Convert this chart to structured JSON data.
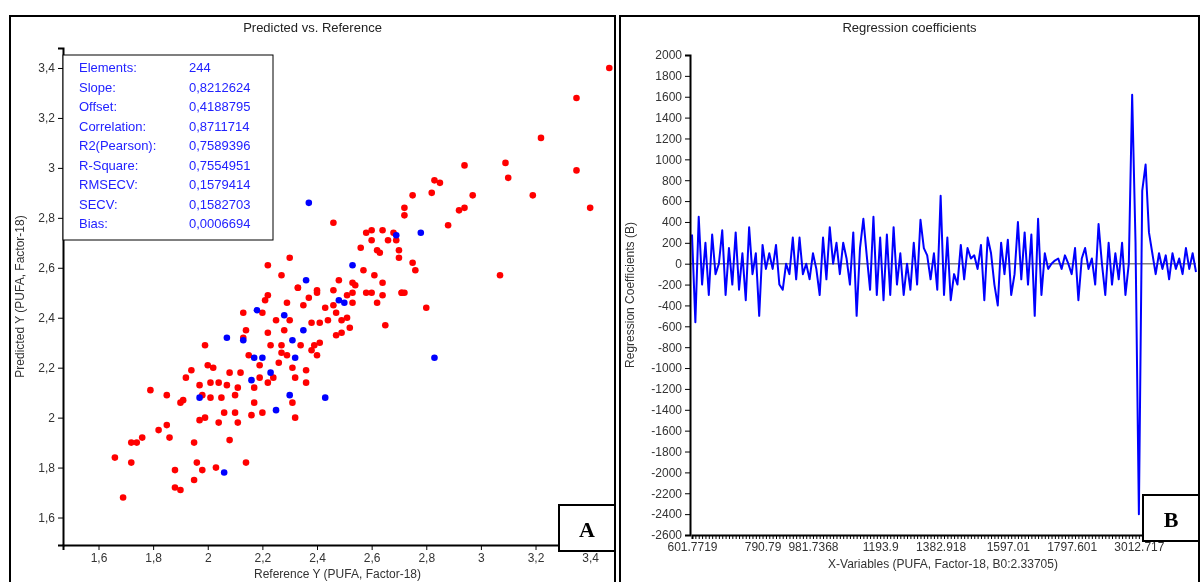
{
  "chart_data": [
    {
      "type": "scatter",
      "title": "Predicted vs. Reference",
      "xlabel": "Reference Y (PUFA, Factor-18)",
      "ylabel": "Predicted Y (PUFA, Factor-18)",
      "marker": "circle",
      "xlim": [
        1.47,
        3.48
      ],
      "ylim": [
        1.49,
        3.48
      ],
      "xticks": [
        {
          "value": 1.6,
          "label": "1,6"
        },
        {
          "value": 1.8,
          "label": "1,8"
        },
        2,
        {
          "value": 2.2,
          "label": "2,2"
        },
        {
          "value": 2.4,
          "label": "2,4"
        },
        {
          "value": 2.6,
          "label": "2,6"
        },
        {
          "value": 2.8,
          "label": "2,8"
        },
        3,
        {
          "value": 3.2,
          "label": "3,2"
        },
        {
          "value": 3.4,
          "label": "3,4"
        }
      ],
      "yticks": [
        {
          "value": 1.6,
          "label": "1,6"
        },
        {
          "value": 1.8,
          "label": "1,8"
        },
        2,
        {
          "value": 2.2,
          "label": "2,2"
        },
        {
          "value": 2.4,
          "label": "2,4"
        },
        {
          "value": 2.6,
          "label": "2,6"
        },
        {
          "value": 2.8,
          "label": "2,8"
        },
        3,
        {
          "value": 3.2,
          "label": "3,2"
        },
        {
          "value": 3.4,
          "label": "3,4"
        }
      ],
      "annotations": [
        "Elements: 244",
        "Slope: 0,8212624",
        "Offset: 0,4188795",
        "Correlation: 0,8711714",
        "R2(Pearson): 0,7589396",
        "R-Square: 0,7554951",
        "RMSECV: 0,1579414",
        "SECV: 0,1582703",
        "Bias: 0,0006694",
        "A"
      ],
      "series": [
        {
          "color": "#ff0000",
          "x": [
            1.66,
            1.69,
            1.72,
            1.72,
            1.74,
            1.76,
            1.79,
            1.82,
            1.85,
            1.85,
            1.86,
            1.88,
            1.88,
            1.9,
            1.9,
            1.91,
            1.92,
            1.94,
            1.95,
            1.95,
            1.96,
            1.97,
            1.97,
            1.98,
            1.98,
            1.99,
            1.99,
            2,
            2.01,
            2.01,
            2.02,
            2.03,
            2.04,
            2.04,
            2.05,
            2.06,
            2.07,
            2.08,
            2.08,
            2.1,
            2.1,
            2.11,
            2.11,
            2.12,
            2.13,
            2.13,
            2.14,
            2.14,
            2.15,
            2.16,
            2.17,
            2.17,
            2.19,
            2.19,
            2.2,
            2.2,
            2.21,
            2.22,
            2.22,
            2.22,
            2.23,
            2.24,
            2.25,
            2.26,
            2.27,
            2.27,
            2.28,
            2.29,
            2.29,
            2.3,
            2.31,
            2.31,
            2.32,
            2.32,
            2.33,
            2.34,
            2.35,
            2.36,
            2.36,
            2.37,
            2.38,
            2.38,
            2.39,
            2.4,
            2.4,
            2.41,
            2.41,
            2.43,
            2.44,
            2.46,
            2.46,
            2.47,
            2.47,
            2.49,
            2.49,
            2.51,
            2.52,
            2.53,
            2.53,
            2.54,
            2.58,
            2.6,
            2.62,
            2.64,
            2.65,
            2.71,
            2.72,
            2.8,
            2.46,
            2.22,
            2.27,
            2.3,
            2.33,
            2.4,
            2.48,
            2.53,
            2.51,
            2.56,
            2.57,
            2.58,
            2.6,
            2.6,
            2.61,
            2.62,
            2.63,
            2.64,
            2.64,
            2.66,
            2.68,
            2.69,
            2.7,
            2.7,
            2.71,
            2.72,
            2.72,
            2.75,
            2.75,
            2.76,
            2.82,
            2.83,
            2.85,
            2.88,
            2.92,
            2.94,
            2.94,
            2.97,
            3.07,
            3.09,
            3.1,
            3.19,
            3.22,
            3.35,
            3.35,
            3.4,
            3.47
          ],
          "values": [
            1.84,
            1.68,
            1.82,
            1.9,
            1.9,
            1.92,
            2.11,
            1.95,
            1.97,
            2.09,
            1.92,
            1.79,
            1.72,
            1.71,
            2.06,
            2.07,
            2.16,
            2.19,
            1.9,
            1.75,
            1.82,
            2.13,
            1.99,
            1.79,
            2.09,
            2.29,
            2,
            2.21,
            2.14,
            2.08,
            2.2,
            1.8,
            1.98,
            2.14,
            2.08,
            2.02,
            2.13,
            1.91,
            2.18,
            2.02,
            2.09,
            1.98,
            2.12,
            2.18,
            2.42,
            2.32,
            1.82,
            2.35,
            2.25,
            2.01,
            2.06,
            2.12,
            2.16,
            2.21,
            2.42,
            2.02,
            2.47,
            2.49,
            2.34,
            2.14,
            2.29,
            2.16,
            2.39,
            2.22,
            2.29,
            2.26,
            2.35,
            2.25,
            2.46,
            2.39,
            2.2,
            2.06,
            2,
            2.16,
            2.52,
            2.29,
            2.45,
            2.14,
            2.19,
            2.48,
            2.38,
            2.27,
            2.29,
            2.51,
            2.25,
            2.38,
            2.3,
            2.44,
            2.39,
            2.51,
            2.45,
            2.33,
            2.42,
            2.39,
            2.34,
            2.4,
            2.36,
            2.46,
            2.5,
            2.53,
            2.5,
            2.5,
            2.46,
            2.49,
            2.37,
            2.5,
            2.5,
            2.44,
            2.78,
            2.61,
            2.57,
            2.64,
            2.52,
            2.5,
            2.55,
            2.54,
            2.49,
            2.68,
            2.59,
            2.74,
            2.75,
            2.71,
            2.57,
            2.67,
            2.66,
            2.54,
            2.75,
            2.71,
            2.74,
            2.71,
            2.67,
            2.64,
            2.5,
            2.84,
            2.81,
            2.89,
            2.62,
            2.59,
            2.9,
            2.95,
            2.94,
            2.77,
            2.83,
            2.84,
            3.01,
            2.89,
            2.57,
            3.02,
            2.96,
            2.89,
            3.12,
            3.28,
            2.99,
            2.84,
            3.4
          ]
        },
        {
          "color": "#0000ff",
          "x": [
            2.37,
            2.69,
            2.78,
            2.53,
            2.36,
            2.48,
            2.5,
            2.18,
            2.28,
            2.07,
            2.13,
            2.31,
            2.35,
            2.17,
            2.2,
            2.32,
            2.23,
            2.16,
            1.97,
            2.3,
            2.43,
            2.25,
            2.06,
            2.83
          ],
          "values": [
            2.86,
            2.73,
            2.74,
            2.61,
            2.55,
            2.47,
            2.46,
            2.43,
            2.41,
            2.32,
            2.31,
            2.31,
            2.35,
            2.24,
            2.24,
            2.24,
            2.18,
            2.15,
            2.08,
            2.09,
            2.08,
            2.03,
            1.78,
            2.24
          ]
        }
      ]
    },
    {
      "type": "line",
      "title": "Regression coefficients",
      "xlabel": "X-Variables (PUFA, Factor-18, B0:2.33705)",
      "ylabel": "Regression Coefficients (B)",
      "ylim": [
        -2600,
        2000
      ],
      "yticks": [
        -2600,
        -2400,
        -2200,
        -2000,
        -1800,
        -1600,
        -1400,
        -1200,
        -1000,
        -800,
        -600,
        -400,
        -200,
        0,
        200,
        400,
        600,
        800,
        1000,
        1200,
        1400,
        1600,
        1800,
        2000
      ],
      "ref_lines": [
        {
          "axis": "y",
          "value": 0,
          "color": "#808080"
        }
      ],
      "annotations": [
        "B"
      ],
      "categories": [
        "601.7719",
        null,
        null,
        null,
        null,
        null,
        null,
        null,
        null,
        null,
        null,
        null,
        null,
        null,
        null,
        null,
        null,
        null,
        null,
        null,
        null,
        "790.79",
        null,
        null,
        null,
        null,
        null,
        null,
        null,
        null,
        null,
        null,
        null,
        null,
        null,
        null,
        "981.7368",
        null,
        null,
        null,
        null,
        null,
        null,
        null,
        null,
        null,
        null,
        null,
        null,
        null,
        null,
        null,
        null,
        null,
        null,
        null,
        "1193.9",
        null,
        null,
        null,
        null,
        null,
        null,
        null,
        null,
        null,
        null,
        null,
        null,
        null,
        null,
        null,
        null,
        null,
        "1382.918",
        null,
        null,
        null,
        null,
        null,
        null,
        null,
        null,
        null,
        null,
        null,
        null,
        null,
        null,
        null,
        null,
        null,
        null,
        null,
        "1597.01",
        null,
        null,
        null,
        null,
        null,
        null,
        null,
        null,
        null,
        null,
        null,
        null,
        null,
        null,
        null,
        null,
        null,
        null,
        "1797.601",
        null,
        null,
        null,
        null,
        null,
        null,
        null,
        null,
        null,
        null,
        null,
        null,
        null,
        null,
        null,
        null,
        null,
        null,
        null,
        "3012.717",
        null,
        null,
        null,
        null,
        null,
        null,
        null,
        null,
        null,
        null,
        null,
        null,
        null,
        null,
        null,
        null,
        null
      ],
      "series": [
        {
          "color": "#0000ff",
          "values": [
            280,
            -560,
            450,
            -200,
            200,
            -300,
            280,
            -100,
            0,
            320,
            -300,
            150,
            -200,
            300,
            -250,
            100,
            -350,
            350,
            -100,
            100,
            -500,
            180,
            -50,
            100,
            -50,
            180,
            -200,
            -250,
            0,
            -100,
            250,
            -150,
            250,
            -100,
            0,
            -150,
            100,
            -50,
            -300,
            250,
            -150,
            350,
            0,
            200,
            -100,
            200,
            50,
            -200,
            300,
            -500,
            150,
            430,
            80,
            -250,
            450,
            -300,
            250,
            -350,
            280,
            -300,
            350,
            -200,
            100,
            -300,
            0,
            -250,
            200,
            -200,
            420,
            150,
            80,
            -150,
            100,
            -250,
            650,
            -300,
            250,
            -350,
            -100,
            -200,
            180,
            -150,
            150,
            50,
            80,
            -50,
            180,
            -350,
            250,
            100,
            -200,
            -400,
            200,
            -100,
            230,
            -300,
            -100,
            400,
            -150,
            300,
            -200,
            280,
            -500,
            430,
            -300,
            100,
            -50,
            0,
            30,
            50,
            -50,
            80,
            0,
            -100,
            150,
            -350,
            50,
            150,
            -50,
            50,
            -200,
            380,
            0,
            -300,
            200,
            -200,
            100,
            -150,
            200,
            -300,
            0,
            1620,
            200,
            -2400,
            700,
            950,
            300,
            100,
            -100,
            100,
            -50,
            80,
            -150,
            100,
            -50,
            50,
            -100,
            150,
            -50,
            100,
            -80
          ]
        }
      ]
    }
  ]
}
